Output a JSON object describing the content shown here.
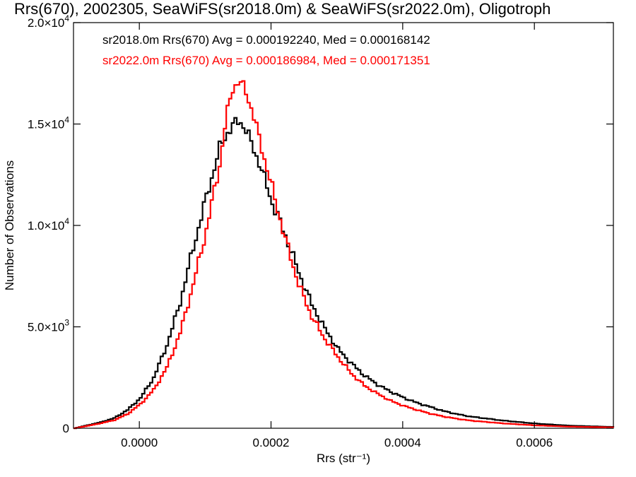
{
  "chart_data": {
    "type": "line",
    "title": "Rrs(670), 2002305, SeaWiFS(sr2018.0m) & SeaWiFS(sr2022.0m), Oligotroph",
    "xlabel": "Rrs (str⁻¹)",
    "ylabel": "Number of Observations",
    "xlim": [
      -0.0001,
      0.00072
    ],
    "ylim": [
      0,
      20000
    ],
    "x_ticks": [
      0.0,
      0.0002,
      0.0004,
      0.0006
    ],
    "x_tick_labels": [
      "0.0000",
      "0.0002",
      "0.0004",
      "0.0006"
    ],
    "y_ticks": [
      0,
      5000,
      10000,
      15000,
      20000
    ],
    "y_tick_labels": [
      {
        "mant": "0",
        "exp": ""
      },
      {
        "mant": "5.0×10",
        "exp": "3"
      },
      {
        "mant": "1.0×10",
        "exp": "4"
      },
      {
        "mant": "1.5×10",
        "exp": "4"
      },
      {
        "mant": "2.0×10",
        "exp": "4"
      }
    ],
    "grid": false,
    "line_style": "step",
    "legend_position": "top-left",
    "legend": [
      "sr2018.0m Rrs(670) Avg = 0.000192240, Med = 0.000168142",
      "sr2022.0m Rrs(670) Avg = 0.000186984, Med = 0.000171351"
    ],
    "series": [
      {
        "label": "sr2018.0m",
        "color": "#000000",
        "x": [
          -0.0001,
          -8e-05,
          -6e-05,
          -4e-05,
          -2e-05,
          0.0,
          2e-05,
          4e-05,
          6e-05,
          8e-05,
          0.0001,
          0.00012,
          0.00013,
          0.00014,
          0.00015,
          0.00016,
          0.00018,
          0.0002,
          0.00022,
          0.00024,
          0.00026,
          0.00028,
          0.0003,
          0.00032,
          0.00034,
          0.00036,
          0.00038,
          0.0004,
          0.00042,
          0.00044,
          0.00046,
          0.00048,
          0.0005,
          0.00055,
          0.0006,
          0.00065,
          0.00072
        ],
        "y": [
          0,
          150,
          300,
          500,
          900,
          1500,
          2500,
          4100,
          6200,
          8900,
          11400,
          13800,
          14500,
          14900,
          15200,
          14700,
          13100,
          11100,
          9500,
          7700,
          6100,
          4900,
          3900,
          3200,
          2600,
          2150,
          1800,
          1500,
          1250,
          1050,
          850,
          700,
          580,
          380,
          230,
          130,
          60
        ]
      },
      {
        "label": "sr2022.0m",
        "color": "#ff0000",
        "x": [
          -0.0001,
          -8e-05,
          -6e-05,
          -4e-05,
          -2e-05,
          0.0,
          2e-05,
          4e-05,
          6e-05,
          8e-05,
          0.0001,
          0.00012,
          0.00013,
          0.00014,
          0.00015,
          0.00016,
          0.00017,
          0.00018,
          0.0002,
          0.00022,
          0.00024,
          0.00026,
          0.00028,
          0.0003,
          0.00032,
          0.00034,
          0.00036,
          0.00038,
          0.0004,
          0.00042,
          0.00044,
          0.00046,
          0.00048,
          0.0005,
          0.00055,
          0.0006,
          0.00065,
          0.00072
        ],
        "y": [
          0,
          120,
          250,
          400,
          700,
          1200,
          1900,
          3000,
          4700,
          7100,
          9800,
          13000,
          15300,
          16800,
          17100,
          16600,
          15600,
          14300,
          11800,
          9300,
          7100,
          5500,
          4400,
          3500,
          2700,
          2100,
          1700,
          1350,
          1100,
          900,
          720,
          580,
          470,
          380,
          240,
          140,
          80,
          40
        ]
      }
    ]
  }
}
